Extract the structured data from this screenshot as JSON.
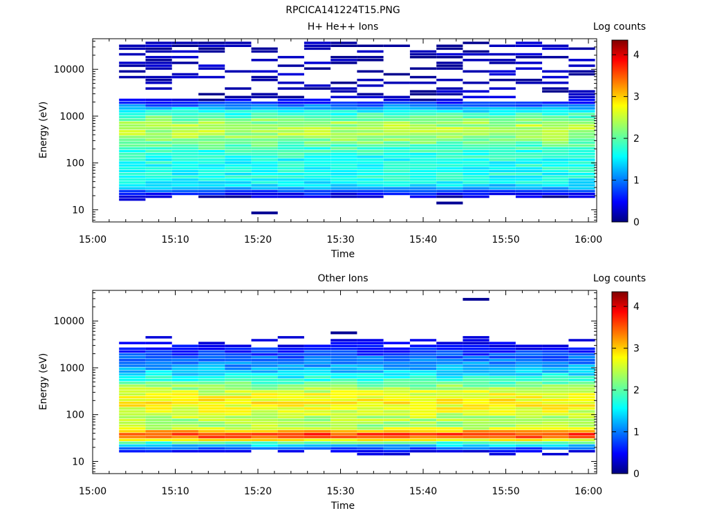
{
  "figure": {
    "title": "RPCICA141224T15.PNG"
  },
  "chart_data": [
    {
      "type": "heatmap",
      "title": "H+ He++ Ions",
      "xlabel": "Time",
      "ylabel": "Energy (eV)",
      "x_ticks": [
        "15:00",
        "15:10",
        "15:20",
        "15:30",
        "15:40",
        "15:50",
        "16:00"
      ],
      "y_ticks": [
        "10",
        "100",
        "1000",
        "10000"
      ],
      "y_scale": "log",
      "y_range_ev": [
        5.5,
        45000
      ],
      "x_range_min": [
        0,
        61
      ],
      "colorbar": {
        "label": "Log counts",
        "ticks": [
          "0",
          "1",
          "2",
          "3",
          "4"
        ],
        "range": [
          0,
          4.35
        ]
      },
      "time_columns_min": [
        3.2,
        6.4,
        9.6,
        12.8,
        16.0,
        19.2,
        22.4,
        25.6,
        28.8,
        32.0,
        35.2,
        38.4,
        41.6,
        44.8,
        48.0,
        51.2,
        54.4,
        57.6
      ],
      "profile_description": "Main band of H+ counts between ~25 eV and ~1800 eV peaking ~2.4 log counts near 300-1000 eV; sparse low-count (~0-0.4) streaks up to ~40000 eV; isolated low-count points at ~8 eV (15:20) and ~13 eV (15:43)."
    },
    {
      "type": "heatmap",
      "title": "Other Ions",
      "xlabel": "Time",
      "ylabel": "Energy (eV)",
      "x_ticks": [
        "15:00",
        "15:10",
        "15:20",
        "15:30",
        "15:40",
        "15:50",
        "16:00"
      ],
      "y_ticks": [
        "10",
        "100",
        "1000",
        "10000"
      ],
      "y_scale": "log",
      "y_range_ev": [
        5.5,
        45000
      ],
      "x_range_min": [
        0,
        61
      ],
      "colorbar": {
        "label": "Log counts",
        "ticks": [
          "0",
          "1",
          "2",
          "3",
          "4"
        ],
        "range": [
          0,
          4.35
        ]
      },
      "time_columns_min": [
        3.2,
        6.4,
        9.6,
        12.8,
        16.0,
        19.2,
        22.4,
        25.6,
        28.8,
        32.0,
        35.2,
        38.4,
        41.6,
        44.8,
        48.0,
        51.2,
        54.4,
        57.6
      ],
      "profile_description": "Broad heavy-ion band from ~20 eV to ~2800 eV, strongest (~3.5-3.9 log counts) near 30-45 eV, ~2.8 around 100-300 eV, fading to ~1 near 1000 eV; isolated streak near 27000 eV at 15:45 and ~5200 eV at 15:30."
    }
  ]
}
